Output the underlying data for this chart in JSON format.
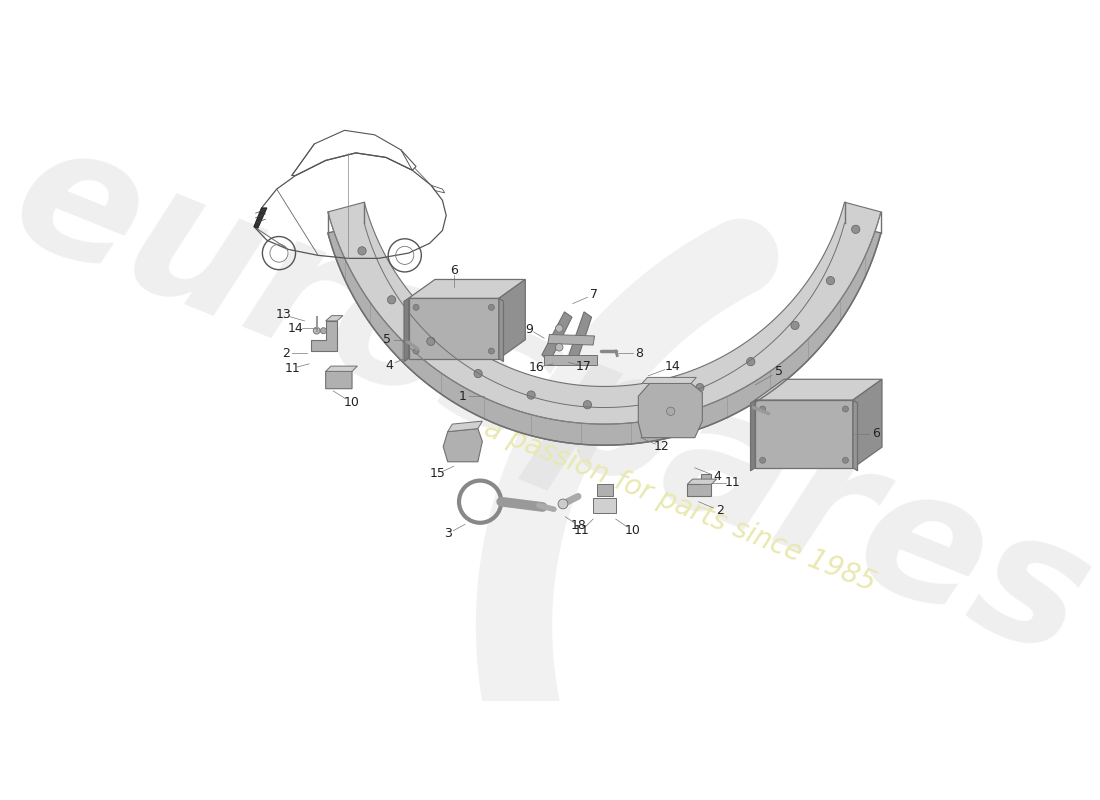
{
  "bg_color": "#ffffff",
  "watermark_text1": "eurospares",
  "watermark_text2": "a passion for parts since 1985",
  "watermark_color1": "#e0e0e0",
  "watermark_color2": "#e8e8b0",
  "part_color_dark": "#909090",
  "part_color_mid": "#b0b0b0",
  "part_color_light": "#d0d0d0",
  "part_color_edge": "#707070",
  "label_color": "#222222",
  "label_fontsize": 9
}
